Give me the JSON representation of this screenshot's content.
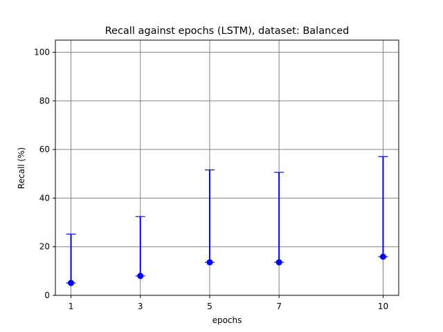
{
  "chart_data": {
    "type": "scatter",
    "title": "Recall against epochs (LSTM), dataset: Balanced",
    "xlabel": "epochs",
    "ylabel": "Recall (%)",
    "x_ticks": [
      1,
      3,
      5,
      7,
      10
    ],
    "y_ticks": [
      0,
      20,
      40,
      60,
      80,
      100
    ],
    "xlim": [
      0.55,
      10.45
    ],
    "ylim": [
      0,
      105
    ],
    "grid": true,
    "series": [
      {
        "x": [
          1,
          3,
          5,
          7,
          10
        ],
        "values": [
          5.1,
          8.0,
          13.6,
          13.6,
          15.9
        ],
        "error_low": [
          0,
          0,
          0,
          0,
          0
        ],
        "error_high": [
          20.1,
          24.4,
          38.0,
          37.0,
          41.2
        ]
      }
    ],
    "colors": {
      "series": "#0000ff",
      "grid": "#808080",
      "axes": "#000000"
    }
  }
}
